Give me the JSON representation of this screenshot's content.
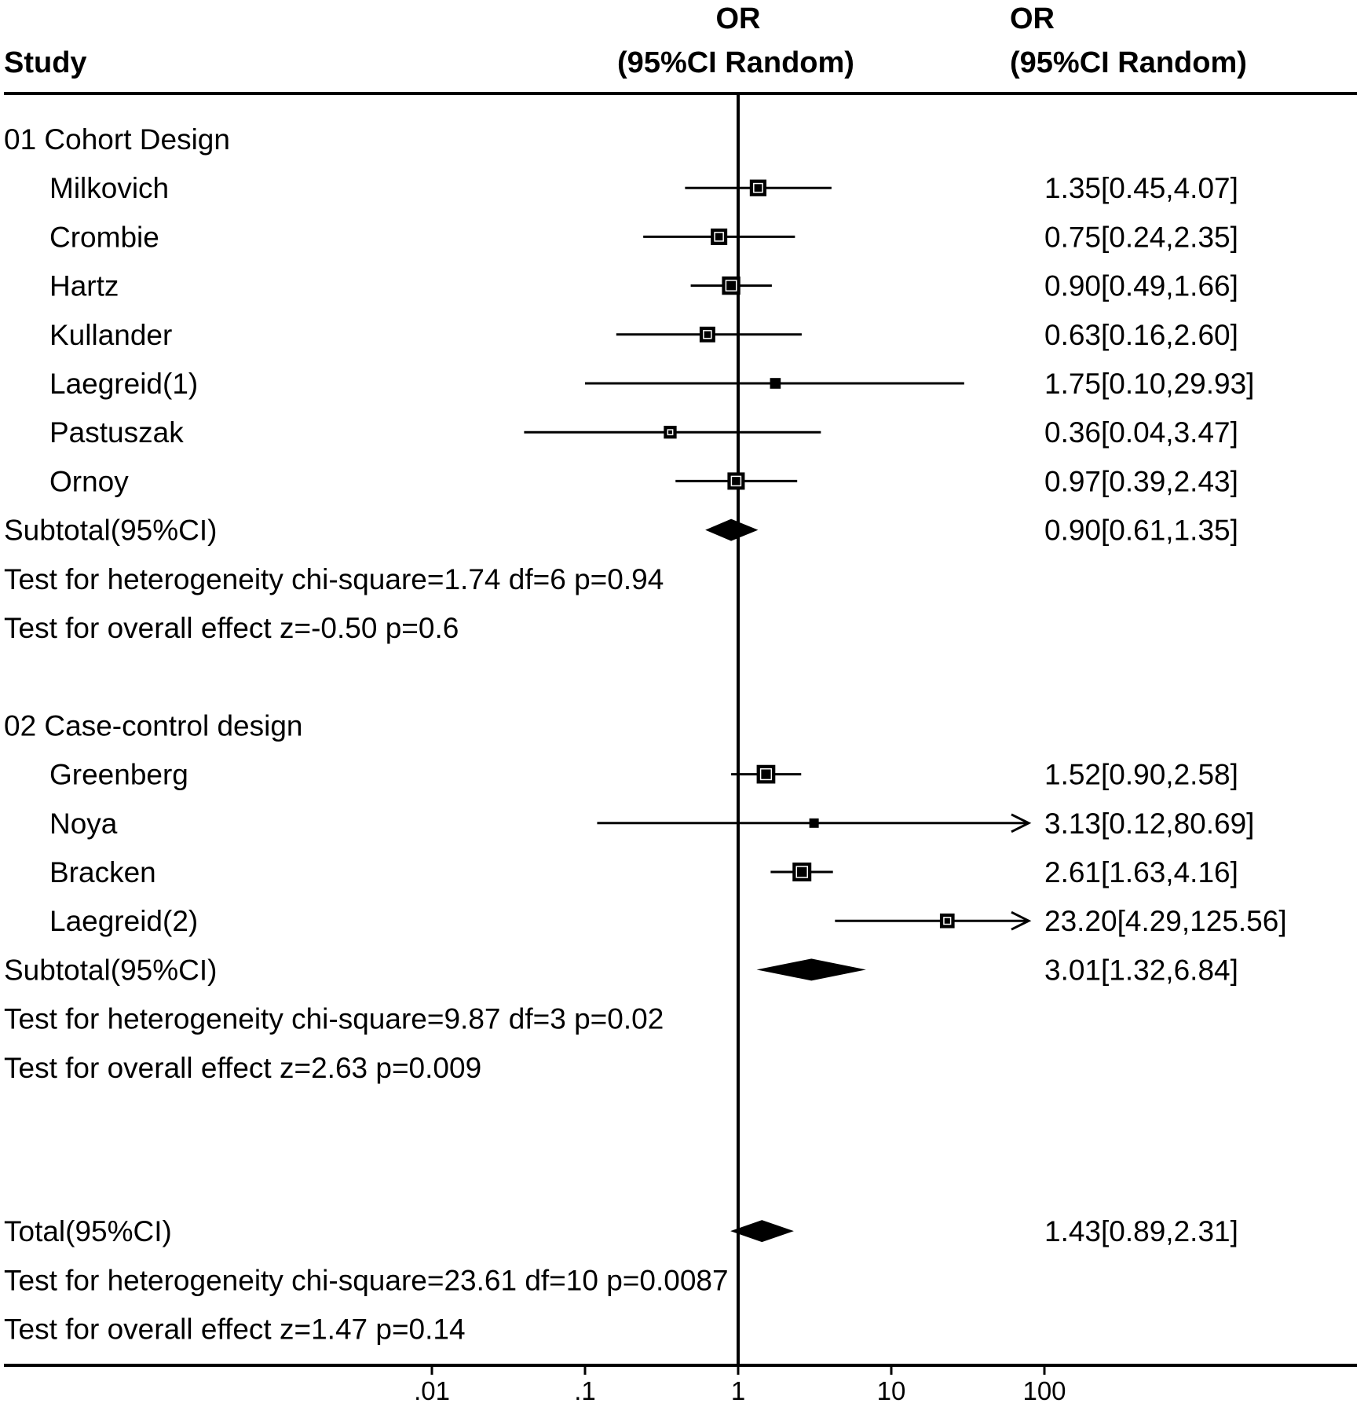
{
  "chart_data": {
    "type": "forest",
    "headers": {
      "study": "Study",
      "or_line1": "OR",
      "or_line2": "(95%CI Random)",
      "val_line1": "OR",
      "val_line2": "(95%CI Random)"
    },
    "x_scale": "log",
    "x_ticks": [
      {
        "value": 0.01,
        "label": ".01"
      },
      {
        "value": 0.1,
        "label": ".1"
      },
      {
        "value": 1,
        "label": "1"
      },
      {
        "value": 10,
        "label": "10"
      },
      {
        "value": 100,
        "label": "100"
      }
    ],
    "groups": [
      {
        "title": "01 Cohort Design",
        "studies": [
          {
            "name": "Milkovich",
            "or": 1.35,
            "lo": 0.45,
            "hi": 4.07,
            "text": "1.35[0.45,4.07]"
          },
          {
            "name": "Crombie",
            "or": 0.75,
            "lo": 0.24,
            "hi": 2.35,
            "text": "0.75[0.24,2.35]"
          },
          {
            "name": "Hartz",
            "or": 0.9,
            "lo": 0.49,
            "hi": 1.66,
            "text": "0.90[0.49,1.66]"
          },
          {
            "name": "Kullander",
            "or": 0.63,
            "lo": 0.16,
            "hi": 2.6,
            "text": "0.63[0.16,2.60]"
          },
          {
            "name": "Laegreid(1)",
            "or": 1.75,
            "lo": 0.1,
            "hi": 29.93,
            "text": "1.75[0.10,29.93]"
          },
          {
            "name": "Pastuszak",
            "or": 0.36,
            "lo": 0.04,
            "hi": 3.47,
            "text": "0.36[0.04,3.47]"
          },
          {
            "name": "Ornoy",
            "or": 0.97,
            "lo": 0.39,
            "hi": 2.43,
            "text": "0.97[0.39,2.43]"
          }
        ],
        "subtotal": {
          "label": "Subtotal(95%CI)",
          "or": 0.9,
          "lo": 0.61,
          "hi": 1.35,
          "text": "0.90[0.61,1.35]"
        },
        "heterogeneity": "Test for heterogeneity chi-square=1.74  df=6  p=0.94",
        "overall": "Test for overall effect  z=-0.50  p=0.6"
      },
      {
        "title": "02 Case-control design",
        "studies": [
          {
            "name": "Greenberg",
            "or": 1.52,
            "lo": 0.9,
            "hi": 2.58,
            "text": "1.52[0.90,2.58]"
          },
          {
            "name": "Noya",
            "or": 3.13,
            "lo": 0.12,
            "hi": 80.69,
            "text": "3.13[0.12,80.69]"
          },
          {
            "name": "Bracken",
            "or": 2.61,
            "lo": 1.63,
            "hi": 4.16,
            "text": "2.61[1.63,4.16]"
          },
          {
            "name": "Laegreid(2)",
            "or": 23.2,
            "lo": 4.29,
            "hi": 125.56,
            "text": "23.20[4.29,125.56]"
          }
        ],
        "subtotal": {
          "label": "Subtotal(95%CI)",
          "or": 3.01,
          "lo": 1.32,
          "hi": 6.84,
          "text": "3.01[1.32,6.84]"
        },
        "heterogeneity": "Test for heterogeneity chi-square=9.87  df=3  p=0.02",
        "overall": "Test for overall effect  z=2.63  p=0.009"
      }
    ],
    "total": {
      "label": "Total(95%CI)",
      "or": 1.43,
      "lo": 0.89,
      "hi": 2.31,
      "text": "1.43[0.89,2.31]",
      "heterogeneity": "Test for heterogeneity chi-square=23.61  df=10  p=0.0087",
      "overall": "Test for overall effect  z=1.47  p=0.14"
    }
  }
}
